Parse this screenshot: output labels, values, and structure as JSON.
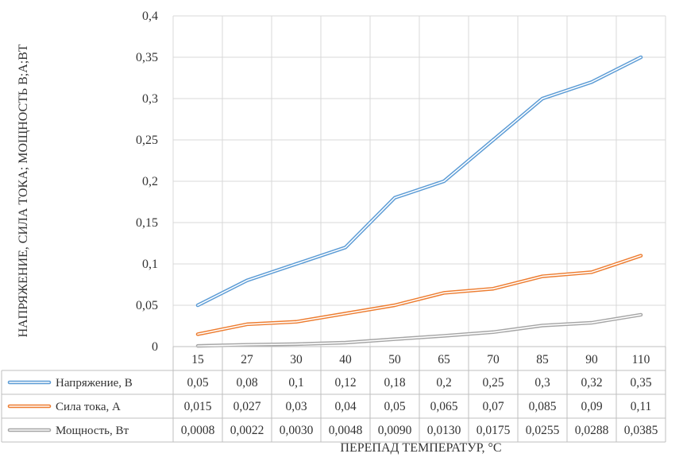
{
  "chart_data": {
    "type": "line",
    "title": "",
    "xlabel": "ПЕРЕПАД ТЕМПЕРАТУР, °С",
    "ylabel": "НАПРЯЖЕНИЕ, СИЛА ТОКА; МОЩНОСТЬ В;А;ВТ",
    "ylim": [
      0,
      0.4
    ],
    "yticks": [
      "0",
      "0,05",
      "0,1",
      "0,15",
      "0,2",
      "0,25",
      "0,3",
      "0,35",
      "0,4"
    ],
    "categories": [
      "15",
      "27",
      "30",
      "40",
      "50",
      "65",
      "70",
      "85",
      "90",
      "110"
    ],
    "grid": true,
    "legend": "data-table",
    "series": [
      {
        "name": "Напряжение, В",
        "color": "#5b9bd5",
        "values": [
          0.05,
          0.08,
          0.1,
          0.12,
          0.18,
          0.2,
          0.25,
          0.3,
          0.32,
          0.35
        ],
        "labels": [
          "0,05",
          "0,08",
          "0,1",
          "0,12",
          "0,18",
          "0,2",
          "0,25",
          "0,3",
          "0,32",
          "0,35"
        ]
      },
      {
        "name": "Сила тока, А",
        "color": "#ed7d31",
        "values": [
          0.015,
          0.027,
          0.03,
          0.04,
          0.05,
          0.065,
          0.07,
          0.085,
          0.09,
          0.11
        ],
        "labels": [
          "0,015",
          "0,027",
          "0,03",
          "0,04",
          "0,05",
          "0,065",
          "0,07",
          "0,085",
          "0,09",
          "0,11"
        ]
      },
      {
        "name": "Мощность, Вт",
        "color": "#a5a5a5",
        "values": [
          0.0008,
          0.0022,
          0.003,
          0.0048,
          0.009,
          0.013,
          0.0175,
          0.0255,
          0.0288,
          0.0385
        ],
        "labels": [
          "0,0008",
          "0,0022",
          "0,0030",
          "0,0048",
          "0,0090",
          "0,0130",
          "0,0175",
          "0,0255",
          "0,0288",
          "0,0385"
        ]
      }
    ]
  }
}
